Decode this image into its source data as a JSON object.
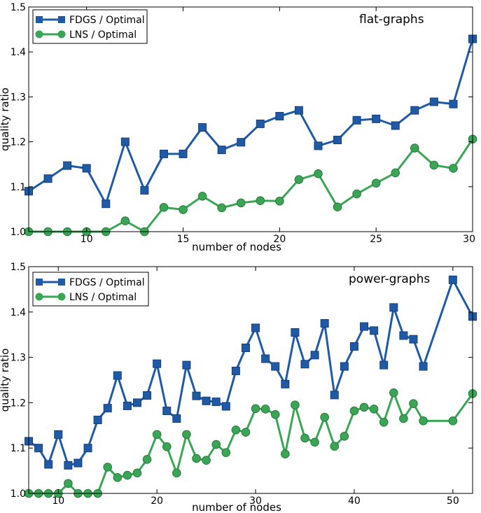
{
  "chart_data": [
    {
      "type": "line",
      "annotation": "flat-graphs",
      "xlabel": "number of nodes",
      "ylabel": "quality ratio",
      "xlim": [
        7,
        30
      ],
      "ylim": [
        1.0,
        1.5
      ],
      "xticks": [
        10,
        15,
        20,
        25,
        30
      ],
      "yticks": [
        1.0,
        1.1,
        1.2,
        1.3,
        1.4,
        1.5
      ],
      "grid": false,
      "legend_position": "top-left",
      "series": [
        {
          "name": "FDGS / Optimal",
          "color": "#1f5aa6",
          "marker": "square",
          "x": [
            7,
            8,
            9,
            10,
            11,
            12,
            13,
            14,
            15,
            16,
            17,
            18,
            19,
            20,
            21,
            22,
            23,
            24,
            25,
            26,
            27,
            28,
            29,
            30
          ],
          "y": [
            1.09,
            1.118,
            1.147,
            1.141,
            1.062,
            1.2,
            1.092,
            1.173,
            1.173,
            1.232,
            1.182,
            1.199,
            1.24,
            1.257,
            1.27,
            1.191,
            1.204,
            1.248,
            1.251,
            1.236,
            1.27,
            1.289,
            1.284,
            1.429
          ]
        },
        {
          "name": "LNS / Optimal",
          "color": "#3aa655",
          "marker": "circle",
          "x": [
            7,
            8,
            9,
            10,
            11,
            12,
            13,
            14,
            15,
            16,
            17,
            18,
            19,
            20,
            21,
            22,
            23,
            24,
            25,
            26,
            27,
            28,
            29,
            30
          ],
          "y": [
            1.0,
            1.0,
            1.0,
            1.0,
            1.0,
            1.024,
            1.0,
            1.054,
            1.049,
            1.079,
            1.053,
            1.064,
            1.069,
            1.068,
            1.116,
            1.129,
            1.055,
            1.084,
            1.108,
            1.131,
            1.186,
            1.148,
            1.141,
            1.206
          ]
        }
      ]
    },
    {
      "type": "line",
      "annotation": "power-graphs",
      "xlabel": "number of nodes",
      "ylabel": "quality ratio",
      "xlim": [
        7,
        52
      ],
      "ylim": [
        1.0,
        1.5
      ],
      "xticks": [
        10,
        20,
        30,
        40,
        50
      ],
      "yticks": [
        1.0,
        1.1,
        1.2,
        1.3,
        1.4,
        1.5
      ],
      "grid": false,
      "legend_position": "top-left",
      "series": [
        {
          "name": "FDGS / Optimal",
          "color": "#1f5aa6",
          "marker": "square",
          "x": [
            7,
            8,
            9,
            10,
            11,
            12,
            13,
            14,
            15,
            16,
            17,
            18,
            19,
            20,
            21,
            22,
            23,
            24,
            25,
            26,
            27,
            28,
            29,
            30,
            31,
            32,
            33,
            34,
            35,
            36,
            37,
            38,
            39,
            40,
            41,
            42,
            43,
            44,
            45,
            46,
            47,
            50,
            52
          ],
          "y": [
            1.115,
            1.1,
            1.064,
            1.13,
            1.062,
            1.067,
            1.1,
            1.162,
            1.188,
            1.26,
            1.193,
            1.2,
            1.216,
            1.286,
            1.182,
            1.165,
            1.283,
            1.215,
            1.204,
            1.202,
            1.192,
            1.27,
            1.321,
            1.365,
            1.297,
            1.28,
            1.241,
            1.355,
            1.285,
            1.305,
            1.375,
            1.217,
            1.28,
            1.324,
            1.368,
            1.359,
            1.283,
            1.41,
            1.348,
            1.34,
            1.28,
            1.471,
            1.39
          ]
        },
        {
          "name": "LNS / Optimal",
          "color": "#3aa655",
          "marker": "circle",
          "x": [
            7,
            8,
            9,
            10,
            11,
            12,
            13,
            14,
            15,
            16,
            17,
            18,
            19,
            20,
            21,
            22,
            23,
            24,
            25,
            26,
            27,
            28,
            29,
            30,
            31,
            32,
            33,
            34,
            35,
            36,
            37,
            38,
            39,
            40,
            41,
            42,
            43,
            44,
            45,
            46,
            47,
            50,
            52
          ],
          "y": [
            1.0,
            1.0,
            1.0,
            1.0,
            1.022,
            1.0,
            1.0,
            1.0,
            1.058,
            1.035,
            1.04,
            1.045,
            1.075,
            1.13,
            1.103,
            1.045,
            1.13,
            1.077,
            1.073,
            1.108,
            1.09,
            1.14,
            1.135,
            1.187,
            1.186,
            1.174,
            1.087,
            1.195,
            1.122,
            1.113,
            1.168,
            1.104,
            1.126,
            1.182,
            1.19,
            1.186,
            1.157,
            1.222,
            1.165,
            1.198,
            1.16,
            1.16,
            1.22
          ]
        }
      ]
    }
  ]
}
